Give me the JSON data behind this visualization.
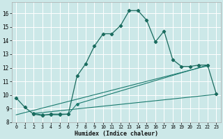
{
  "bg_color": "#cce8e8",
  "grid_color": "#ffffff",
  "line_color": "#1a6b5e",
  "line_color2": "#1a7a6e",
  "xlabel": "Humidex (Indice chaleur)",
  "xlim": [
    -0.5,
    23.5
  ],
  "ylim": [
    8.0,
    16.8
  ],
  "yticks": [
    8,
    9,
    10,
    11,
    12,
    13,
    14,
    15,
    16
  ],
  "xticks": [
    0,
    1,
    2,
    3,
    4,
    5,
    6,
    7,
    8,
    9,
    10,
    11,
    12,
    13,
    14,
    15,
    16,
    17,
    18,
    19,
    20,
    21,
    22,
    23
  ],
  "series1_x": [
    0,
    1,
    2,
    3,
    4,
    5,
    6,
    7,
    8,
    9,
    10,
    11,
    12,
    13,
    14,
    15,
    16,
    17,
    18,
    19,
    20,
    21,
    22,
    23
  ],
  "series1_y": [
    9.8,
    9.1,
    8.6,
    8.5,
    8.6,
    8.6,
    8.6,
    11.4,
    12.3,
    13.6,
    14.5,
    14.5,
    15.1,
    16.2,
    16.2,
    15.5,
    13.9,
    14.7,
    12.6,
    12.1,
    12.1,
    12.2,
    12.2,
    10.1
  ],
  "series2_x": [
    2,
    3,
    4,
    5,
    6,
    7,
    22
  ],
  "series2_y": [
    8.65,
    8.55,
    8.55,
    8.55,
    8.6,
    9.35,
    12.2
  ],
  "series3_x": [
    2,
    23
  ],
  "series3_y": [
    8.65,
    10.05
  ],
  "series4_x": [
    0,
    22
  ],
  "series4_y": [
    8.55,
    12.15
  ]
}
